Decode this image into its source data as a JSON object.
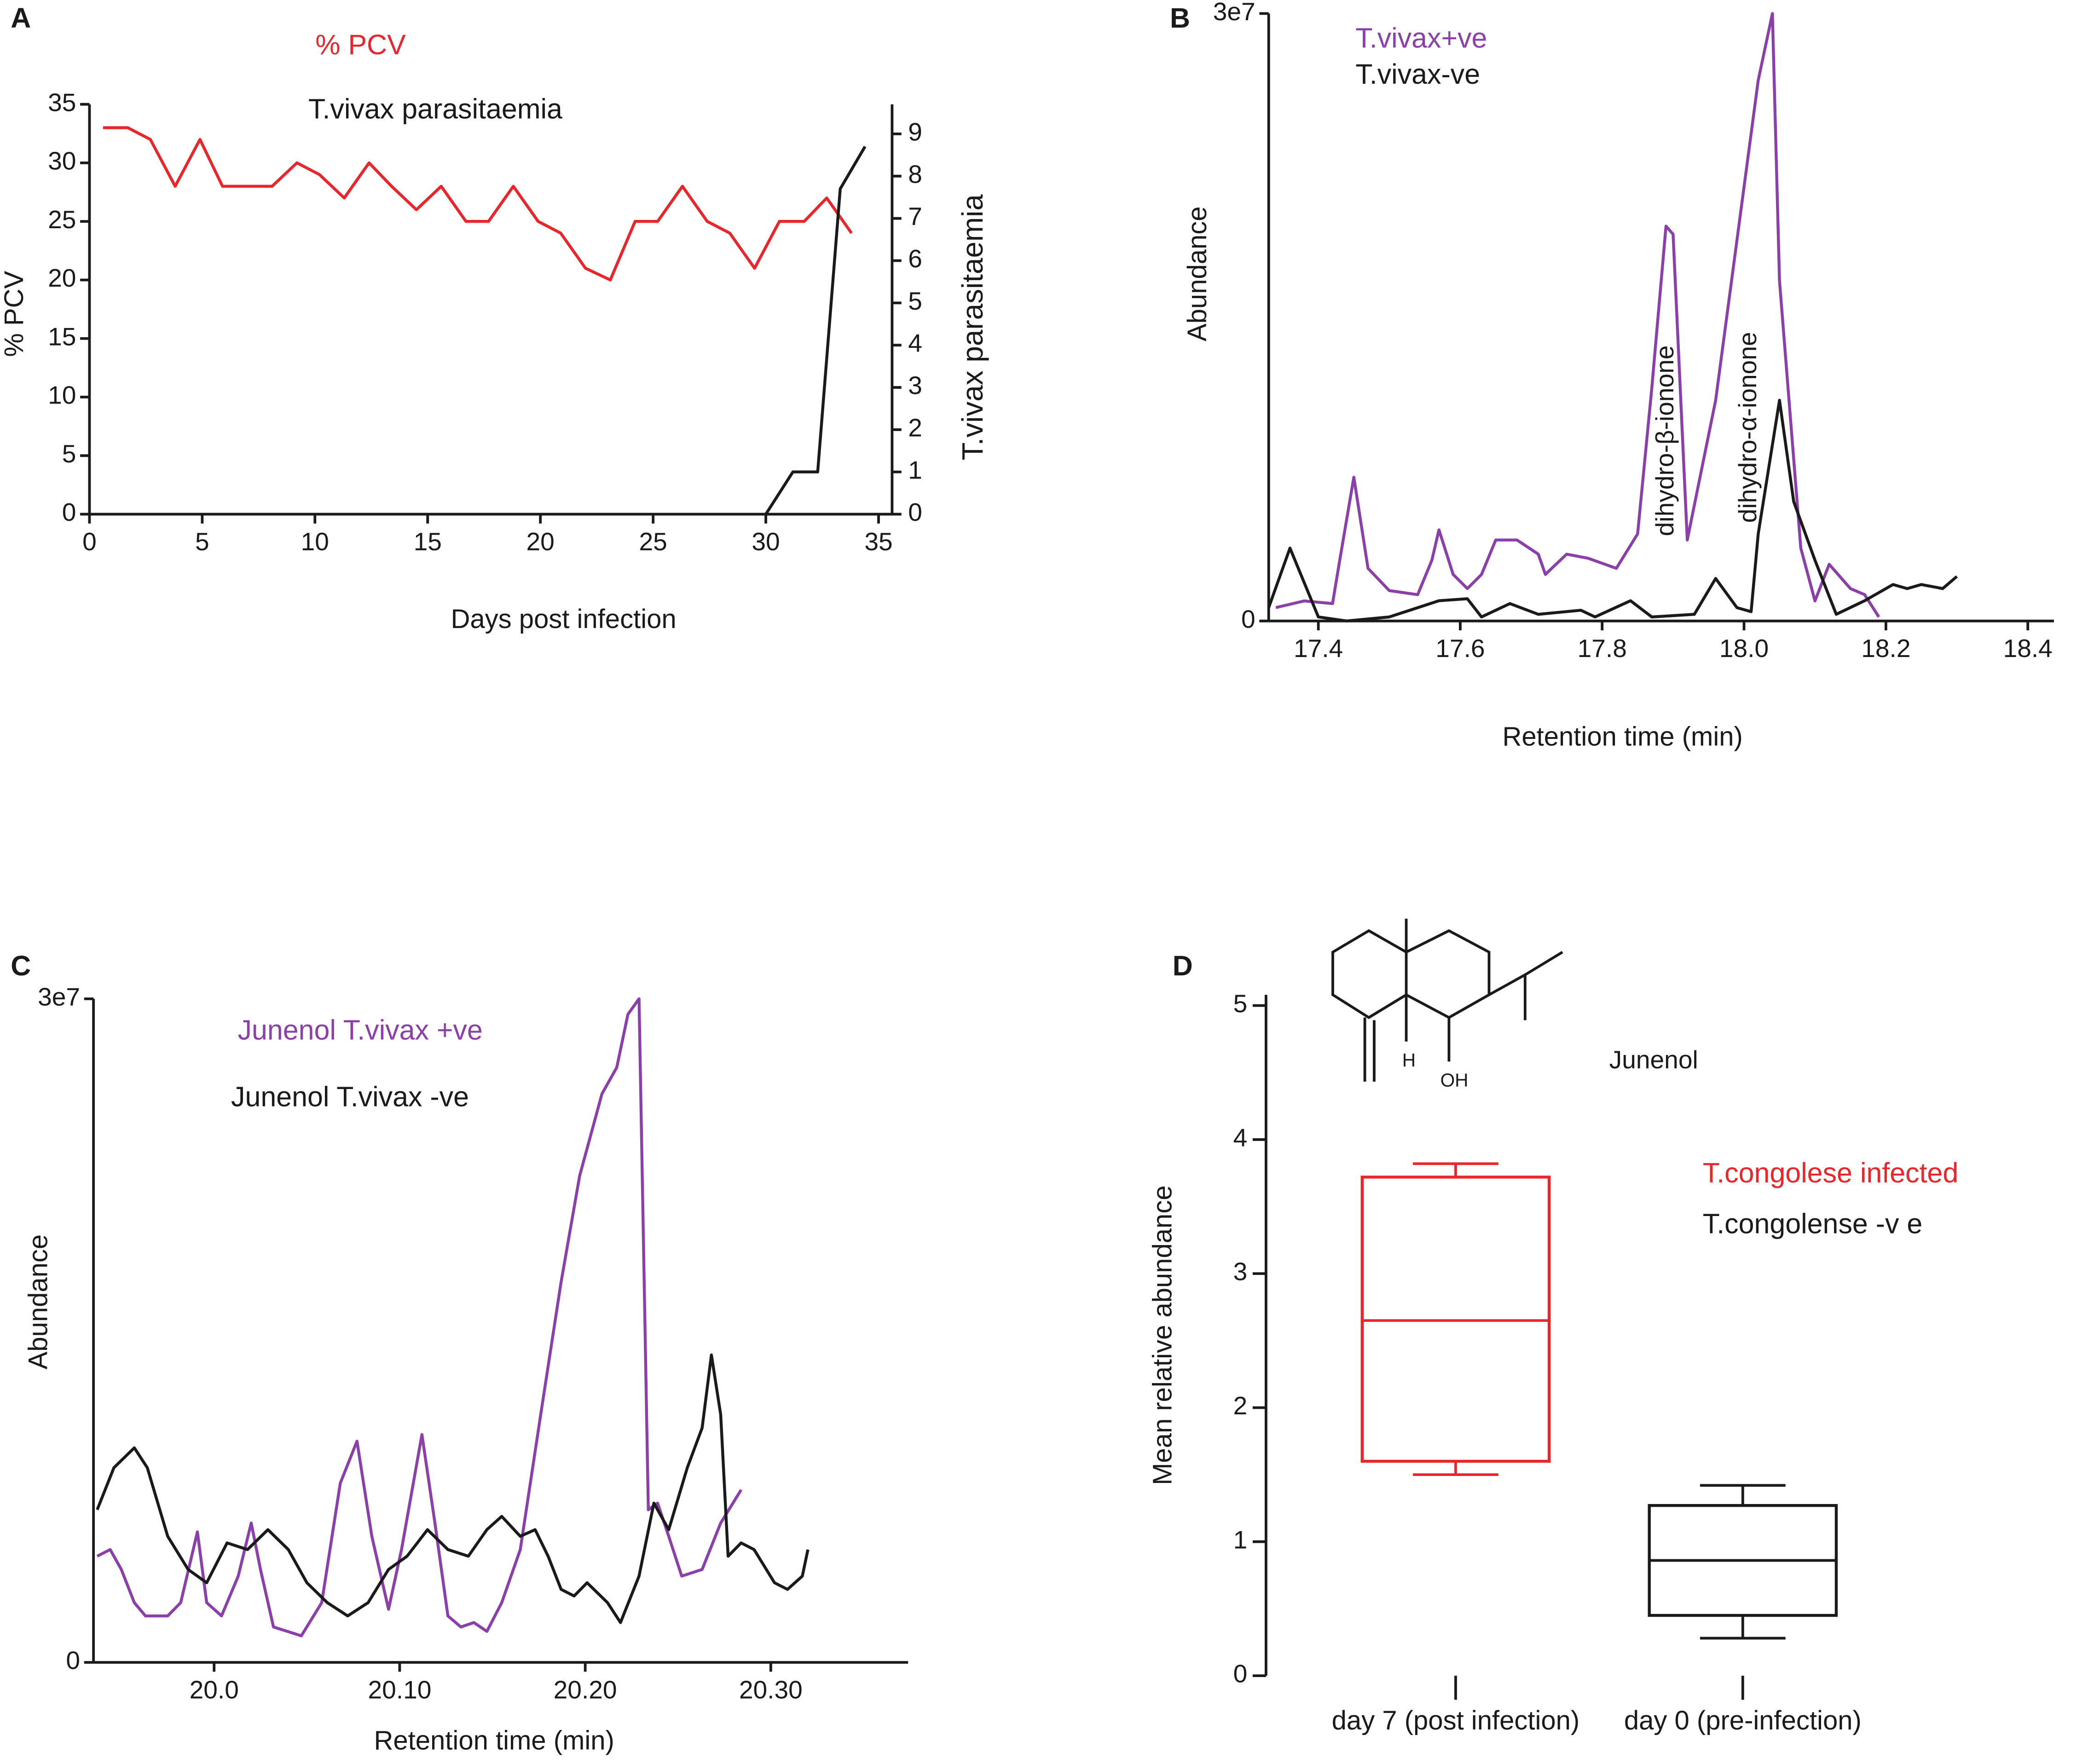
{
  "chart_data": [
    {
      "panel": "A",
      "type": "line",
      "xlabel": "Days post infection",
      "ylabel": "% PCV",
      "y2label": "T.vivax parasitaemia",
      "xlim": [
        0,
        35.6
      ],
      "xticks": [
        0,
        5,
        10,
        15,
        20,
        25,
        30,
        35
      ],
      "ylim": [
        0,
        35
      ],
      "yticks": [
        0,
        5,
        10,
        15,
        20,
        25,
        30,
        35
      ],
      "y2lim": [
        0,
        9.7
      ],
      "y2ticks": [
        0,
        1,
        2,
        3,
        4,
        5,
        6,
        7,
        8,
        9
      ],
      "series": [
        {
          "name": "% PCV",
          "color": "#e8262b",
          "x": [
            0.6,
            1.7,
            2.7,
            3.8,
            4.9,
            5.9,
            7.0,
            8.1,
            9.2,
            10.2,
            11.3,
            12.4,
            13.4,
            14.5,
            15.6,
            16.7,
            17.7,
            18.8,
            19.9,
            20.9,
            22.0,
            23.1,
            24.2,
            25.2,
            26.3,
            27.4,
            28.4,
            29.5,
            30.6,
            31.7,
            32.7,
            33.8
          ],
          "values": [
            33,
            33,
            32,
            28,
            32,
            28,
            28,
            28,
            30,
            29,
            27,
            30,
            28,
            26,
            28,
            25,
            25,
            28,
            25,
            24,
            21,
            20,
            25,
            25,
            28,
            25,
            24,
            21,
            25,
            25,
            27,
            24
          ]
        },
        {
          "name": "T.vivax parasitaemia",
          "color": "#1a1a1a",
          "axis": "y2",
          "x": [
            30.0,
            31.2,
            32.3,
            33.3,
            34.4
          ],
          "values": [
            0,
            1,
            1,
            7.7,
            8.7
          ]
        }
      ]
    },
    {
      "panel": "B",
      "type": "line",
      "xlabel": "Retention time (min)",
      "ylabel": "Abundance",
      "xlim": [
        17.33,
        18.45
      ],
      "xticks": [
        17.4,
        17.6,
        17.8,
        {
          "value": 18,
          "label": "18.0"
        },
        18.2,
        18.4
      ],
      "ylim": [
        0,
        30000000.0
      ],
      "yticks": [
        0,
        {
          "value": 30000000.0,
          "label": "3e7"
        }
      ],
      "annotations": [
        "dihydro-β-ionone",
        "dihydro-α-ionone"
      ],
      "series": [
        {
          "name": "T.vivax+ve",
          "color": "#8b3fa8",
          "x": [
            17.34,
            17.38,
            17.42,
            17.43,
            17.45,
            17.47,
            17.5,
            17.54,
            17.56,
            17.57,
            17.59,
            17.61,
            17.63,
            17.65,
            17.68,
            17.71,
            17.72,
            17.75,
            17.78,
            17.82,
            17.85,
            17.87,
            17.89,
            17.9,
            17.92,
            17.96,
            17.99,
            18.02,
            18.04,
            18.05,
            18.08,
            18.1,
            18.12,
            18.15,
            18.17,
            18.19
          ],
          "values": [
            660000.0,
            990000.0,
            860000.0,
            2970000.0,
            7100000.0,
            2600000.0,
            1500000.0,
            1300000.0,
            3000000.0,
            4500000.0,
            2300000.0,
            1600000.0,
            2300000.0,
            4000000.0,
            4000000.0,
            3300000.0,
            2300000.0,
            3300000.0,
            3100000.0,
            2600000.0,
            4300000.0,
            11500000.0,
            19500000.0,
            19100000.0,
            4000000.0,
            10900000.0,
            18800000.0,
            26700000.0,
            30000000.0,
            16800000.0,
            3600000.0,
            990000.0,
            2800000.0,
            1600000.0,
            1300000.0,
            200000.0
          ]
        },
        {
          "name": "T.vivax-ve",
          "color": "#1a1a1a",
          "x": [
            17.33,
            17.36,
            17.4,
            17.44,
            17.5,
            17.57,
            17.61,
            17.63,
            17.67,
            17.71,
            17.77,
            17.79,
            17.84,
            17.87,
            17.93,
            17.96,
            17.99,
            18.01,
            18.02,
            18.05,
            18.07,
            18.1,
            18.13,
            18.17,
            18.21,
            18.23,
            18.25,
            18.28,
            18.3
          ],
          "values": [
            660000.0,
            3600000.0,
            200000.0,
            0,
            200000.0,
            1000000.0,
            1100000.0,
            200000.0,
            860000.0,
            330000.0,
            530000.0,
            200000.0,
            1000000.0,
            200000.0,
            330000.0,
            2100000.0,
            660000.0,
            460000.0,
            4300000.0,
            10900000.0,
            5900000.0,
            3000000.0,
            330000.0,
            1000000.0,
            1800000.0,
            1600000.0,
            1800000.0,
            1600000.0,
            2200000.0
          ]
        }
      ]
    },
    {
      "panel": "C",
      "type": "line",
      "xlabel": "Retention time (min)",
      "ylabel": "Abundance",
      "xlim": [
        19.935,
        20.374
      ],
      "xticks": [
        {
          "value": 20.0,
          "label": "20.0"
        },
        {
          "value": 20.1,
          "label": "20.10"
        },
        {
          "value": 20.2,
          "label": "20.20"
        },
        {
          "value": 20.3,
          "label": "20.30"
        }
      ],
      "ylim": [
        0,
        30000000.0
      ],
      "yticks": [
        0,
        {
          "value": 30000000.0,
          "label": "3e7"
        }
      ],
      "series": [
        {
          "name": "Junenol T.vivax +ve",
          "color": "#8b3fa8",
          "x": [
            19.937,
            19.944,
            19.95,
            19.957,
            19.963,
            19.975,
            19.982,
            19.991,
            19.996,
            20.004,
            20.013,
            20.02,
            20.025,
            20.032,
            20.047,
            20.058,
            20.068,
            20.077,
            20.085,
            20.094,
            20.101,
            20.112,
            20.119,
            20.126,
            20.133,
            20.14,
            20.147,
            20.155,
            20.165,
            20.176,
            20.187,
            20.197,
            20.209,
            20.217,
            20.223,
            20.229,
            20.234,
            20.239,
            20.245,
            20.252,
            20.263,
            20.273,
            20.284
          ],
          "values": [
            4800000.0,
            5100000.0,
            4200000.0,
            2700000.0,
            2100000.0,
            2100000.0,
            2700000.0,
            5900000.0,
            2700000.0,
            2100000.0,
            3900000.0,
            6300000.0,
            4200000.0,
            1600000.0,
            1200000.0,
            2700000.0,
            8100000.0,
            10000000.0,
            5700000.0,
            2400000.0,
            5100000.0,
            10300000.0,
            6300000.0,
            2100000.0,
            1600000.0,
            1800000.0,
            1400000.0,
            2700000.0,
            5100000.0,
            11200000.0,
            17200000.0,
            22000000.0,
            25700000.0,
            26900000.0,
            29300000.0,
            30000000.0,
            6900000.0,
            7200000.0,
            5700000.0,
            3900000.0,
            4200000.0,
            6300000.0,
            7800000.0
          ]
        },
        {
          "name": "Junenol T.vivax -ve",
          "color": "#1a1a1a",
          "x": [
            19.937,
            19.946,
            19.957,
            19.964,
            19.975,
            19.986,
            19.996,
            20.007,
            20.018,
            20.029,
            20.04,
            20.05,
            20.061,
            20.072,
            20.083,
            20.094,
            20.104,
            20.115,
            20.126,
            20.137,
            20.147,
            20.155,
            20.165,
            20.173,
            20.18,
            20.187,
            20.194,
            20.201,
            20.212,
            20.219,
            20.229,
            20.237,
            20.245,
            20.255,
            20.263,
            20.268,
            20.273,
            20.277,
            20.284,
            20.291,
            20.302,
            20.309,
            20.317,
            20.32
          ],
          "values": [
            6900000.0,
            8800000.0,
            9700000.0,
            8800000.0,
            5700000.0,
            4200000.0,
            3600000.0,
            5400000.0,
            5100000.0,
            6000000.0,
            5100000.0,
            3600000.0,
            2700000.0,
            2100000.0,
            2700000.0,
            4200000.0,
            4800000.0,
            6000000.0,
            5100000.0,
            4800000.0,
            6000000.0,
            6600000.0,
            5700000.0,
            6000000.0,
            4800000.0,
            3300000.0,
            3000000.0,
            3600000.0,
            2700000.0,
            1800000.0,
            3900000.0,
            7200000.0,
            6000000.0,
            8800000.0,
            10600000.0,
            13900000.0,
            11200000.0,
            4800000.0,
            5400000.0,
            5100000.0,
            3600000.0,
            3300000.0,
            3900000.0,
            5100000.0
          ]
        }
      ]
    },
    {
      "panel": "D",
      "type": "box",
      "ylabel": "Mean relative abundance",
      "categories": [
        "day 7 (post infection)",
        "day 0 (pre-infection)"
      ],
      "ylim": [
        0,
        5.08
      ],
      "yticks": [
        0,
        1,
        2,
        3,
        4,
        5
      ],
      "compound": "Junenol",
      "structure_labels": [
        "H",
        "OH"
      ],
      "series": [
        {
          "name": "T.congolese infected",
          "color": "#e8262b",
          "min": 1.5,
          "q1": 1.6,
          "median": 2.65,
          "q3": 3.72,
          "max": 3.82
        },
        {
          "name": "T.congolense -v e",
          "color": "#1a1a1a",
          "min": 0.28,
          "q1": 0.45,
          "median": 0.86,
          "q3": 1.27,
          "max": 1.42
        }
      ]
    }
  ]
}
